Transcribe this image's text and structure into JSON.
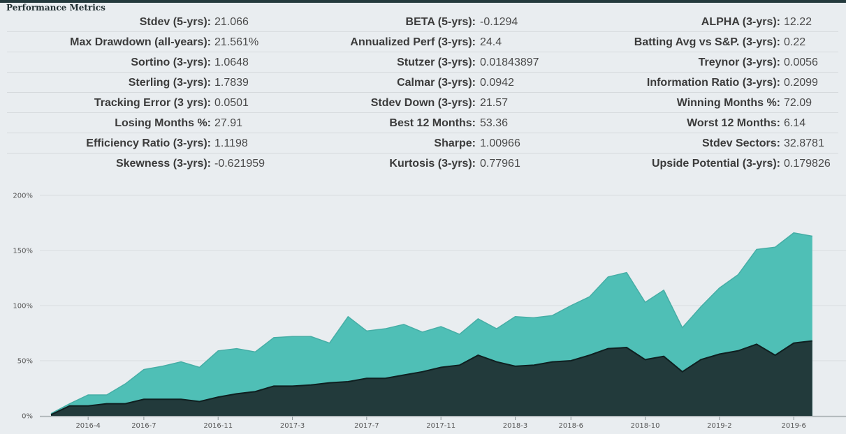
{
  "section_title": "Performance Metrics",
  "metrics": [
    [
      {
        "label": "Stdev (5-yrs):",
        "value": "21.066"
      },
      {
        "label": "BETA (5-yrs):",
        "value": "-0.1294"
      },
      {
        "label": "ALPHA (3-yrs):",
        "value": "12.22"
      }
    ],
    [
      {
        "label": "Max Drawdown (all-years):",
        "value": "21.561%"
      },
      {
        "label": "Annualized Perf (3-yrs):",
        "value": "24.4"
      },
      {
        "label": "Batting Avg vs S&P. (3-yrs):",
        "value": "0.22"
      }
    ],
    [
      {
        "label": "Sortino (3-yrs):",
        "value": "1.0648"
      },
      {
        "label": "Stutzer (3-yrs):",
        "value": "0.01843897"
      },
      {
        "label": "Treynor (3-yrs):",
        "value": "0.0056"
      }
    ],
    [
      {
        "label": "Sterling (3-yrs):",
        "value": "1.7839"
      },
      {
        "label": "Calmar (3-yrs):",
        "value": "0.0942"
      },
      {
        "label": "Information Ratio (3-yrs):",
        "value": "0.2099"
      }
    ],
    [
      {
        "label": "Tracking Error (3 yrs):",
        "value": "0.0501"
      },
      {
        "label": "Stdev Down (3-yrs):",
        "value": "21.57"
      },
      {
        "label": "Winning Months %:",
        "value": "72.09"
      }
    ],
    [
      {
        "label": "Losing Months %:",
        "value": "27.91"
      },
      {
        "label": "Best 12 Months:",
        "value": "53.36"
      },
      {
        "label": "Worst 12 Months:",
        "value": "6.14"
      }
    ],
    [
      {
        "label": "Efficiency Ratio (3-yrs):",
        "value": "1.1198"
      },
      {
        "label": "Sharpe:",
        "value": "1.00966"
      },
      {
        "label": "Stdev Sectors:",
        "value": "32.8781"
      }
    ],
    [
      {
        "label": "Skewness (3-yrs):",
        "value": "-0.621959"
      },
      {
        "label": "Kurtosis (3-yrs):",
        "value": "0.77961"
      },
      {
        "label": "Upside Potential (3-yrs):",
        "value": "0.179826"
      }
    ]
  ],
  "chart_data": {
    "type": "area",
    "y_tick_labels": [
      "0%",
      "50%",
      "100%",
      "150%",
      "200%"
    ],
    "ylim": [
      0,
      200
    ],
    "x_tick_labels": [
      "2016-4",
      "2016-7",
      "2016-11",
      "2017-3",
      "2017-7",
      "2017-11",
      "2018-3",
      "2018-6",
      "2018-10",
      "2019-2",
      "2019-6"
    ],
    "x_tick_months": [
      "2016-4",
      "2016-7",
      "2016-11",
      "2017-3",
      "2017-7",
      "2017-11",
      "2018-3",
      "2018-6",
      "2018-10",
      "2019-2",
      "2019-6"
    ],
    "x": [
      "2016-2",
      "2016-3",
      "2016-4",
      "2016-5",
      "2016-6",
      "2016-7",
      "2016-8",
      "2016-9",
      "2016-10",
      "2016-11",
      "2016-12",
      "2017-1",
      "2017-2",
      "2017-3",
      "2017-4",
      "2017-5",
      "2017-6",
      "2017-7",
      "2017-8",
      "2017-9",
      "2017-10",
      "2017-11",
      "2017-12",
      "2018-1",
      "2018-2",
      "2018-3",
      "2018-4",
      "2018-5",
      "2018-6",
      "2018-7",
      "2018-8",
      "2018-9",
      "2018-10",
      "2018-11",
      "2018-12",
      "2019-1",
      "2019-2",
      "2019-3",
      "2019-4",
      "2019-5",
      "2019-6",
      "2019-7"
    ],
    "series": [
      {
        "color": "#4fbfb6",
        "values": [
          2,
          11,
          19,
          19,
          29,
          42,
          45,
          49,
          44,
          59,
          61,
          58,
          71,
          72,
          72,
          66,
          90,
          77,
          79,
          83,
          76,
          81,
          74,
          88,
          79,
          90,
          89,
          91,
          100,
          108,
          126,
          130,
          103,
          114,
          80,
          99,
          116,
          128,
          151,
          153,
          166,
          163
        ]
      },
      {
        "color": "#223a3b",
        "values": [
          1,
          9,
          9,
          11,
          11,
          15,
          15,
          15,
          13,
          17,
          20,
          22,
          27,
          27,
          28,
          30,
          31,
          34,
          34,
          37,
          40,
          44,
          46,
          55,
          49,
          45,
          46,
          49,
          50,
          55,
          61,
          62,
          51,
          54,
          40,
          51,
          56,
          59,
          65,
          55,
          66,
          68
        ]
      }
    ],
    "grid": true,
    "legend": "none"
  }
}
